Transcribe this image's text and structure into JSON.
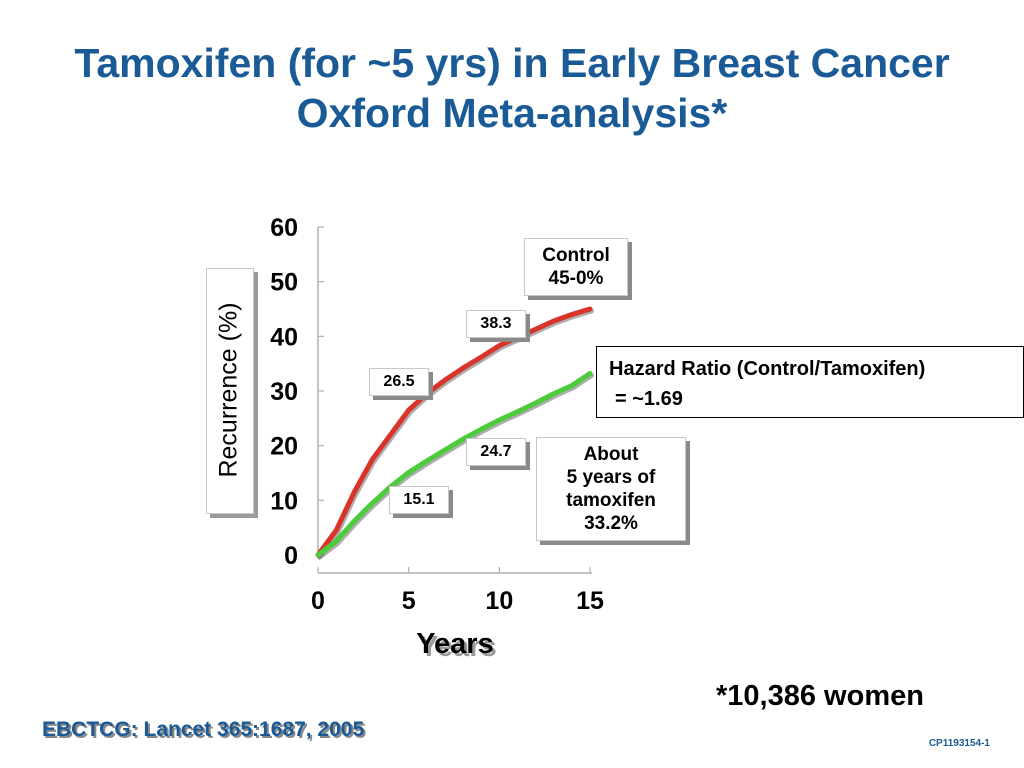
{
  "title_line1": "Tamoxifen (for ~5 yrs) in Early Breast Cancer",
  "title_line2": "Oxford Meta-analysis*",
  "annotations": {
    "control": [
      "Control",
      "45-0%"
    ],
    "tamoxifen": [
      "About",
      "5 years of",
      "tamoxifen",
      "33.2%"
    ],
    "hazard_ratio_line1": "Hazard Ratio (Control/Tamoxifen)",
    "hazard_ratio_line2": "= ~1.69"
  },
  "footnote": "*10,386 women",
  "source": "EBCTCG:  Lancet 365:1687, 2005",
  "slide_code": "CP1193154-1",
  "colors": {
    "title": "#1a5a96",
    "control": "#d8342a",
    "tamoxifen": "#4ccc3a"
  },
  "chart_data": {
    "type": "line",
    "title": "",
    "xlabel": "Years",
    "ylabel": "Recurrence (%)",
    "xlim": [
      0,
      15
    ],
    "ylim": [
      0,
      60
    ],
    "x_ticks": [
      0,
      5,
      10,
      15
    ],
    "y_ticks": [
      0,
      10,
      20,
      30,
      40,
      50,
      60
    ],
    "grid": false,
    "series": [
      {
        "name": "Control",
        "color": "#d8342a",
        "x": [
          0,
          1,
          2,
          3,
          4,
          5,
          6,
          7,
          8,
          9,
          10,
          11,
          12,
          13,
          14,
          15
        ],
        "y": [
          0,
          4.5,
          11.5,
          17.5,
          22,
          26.5,
          29.5,
          32,
          34.2,
          36.2,
          38.3,
          39.8,
          41.3,
          42.8,
          44,
          45
        ]
      },
      {
        "name": "About 5 years of tamoxifen",
        "color": "#4ccc3a",
        "x": [
          0,
          1,
          2,
          3,
          4,
          5,
          6,
          7,
          8,
          9,
          10,
          11,
          12,
          13,
          14,
          15
        ],
        "y": [
          0,
          2.5,
          6.2,
          9.5,
          12.5,
          15.1,
          17.2,
          19.2,
          21.2,
          23,
          24.7,
          26.2,
          27.8,
          29.5,
          31,
          33.2
        ]
      }
    ],
    "data_labels": [
      {
        "x": 5,
        "y": 26.5,
        "text": "26.5"
      },
      {
        "x": 10,
        "y": 38.3,
        "text": "38.3"
      },
      {
        "x": 5,
        "y": 15.1,
        "text": "15.1"
      },
      {
        "x": 10,
        "y": 24.7,
        "text": "24.7"
      }
    ]
  }
}
